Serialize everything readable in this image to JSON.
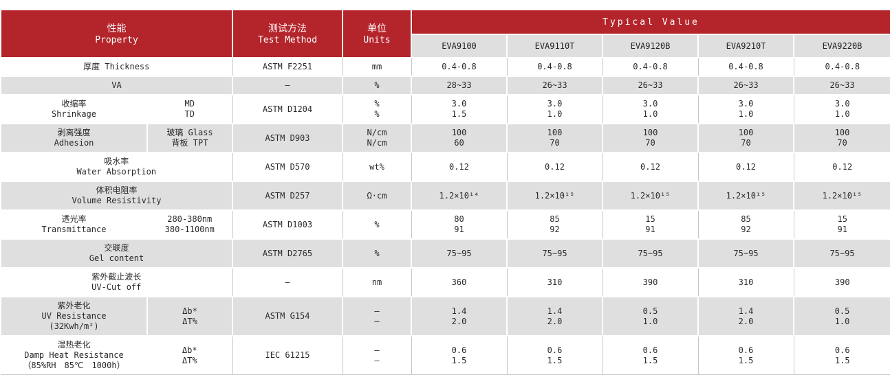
{
  "header": {
    "property": {
      "zh": "性能",
      "en": "Property"
    },
    "test_method": {
      "zh": "测试方法",
      "en": "Test Method"
    },
    "units": {
      "zh": "单位",
      "en": "Units"
    },
    "typical_value": "Typical Value",
    "models": [
      "EVA9100",
      "EVA9110T",
      "EVA9120B",
      "EVA9210T",
      "EVA9220B"
    ]
  },
  "colors": {
    "header_red": "#b4242b",
    "row_gray": "#dfdfdf",
    "row_white": "#ffffff",
    "grid_line": "#c6c6c6"
  },
  "rows": [
    {
      "name": [
        "厚度 Thickness"
      ],
      "sub": null,
      "method": "ASTM F2251",
      "units": [
        "mm"
      ],
      "values": [
        [
          "0.4-0.8"
        ],
        [
          "0.4-0.8"
        ],
        [
          "0.4-0.8"
        ],
        [
          "0.4-0.8"
        ],
        [
          "0.4-0.8"
        ]
      ]
    },
    {
      "name": [
        "VA"
      ],
      "sub": null,
      "method": "–",
      "units": [
        "%"
      ],
      "values": [
        [
          "28~33"
        ],
        [
          "26~33"
        ],
        [
          "26~33"
        ],
        [
          "26~33"
        ],
        [
          "26~33"
        ]
      ]
    },
    {
      "name": [
        "收缩率",
        "Shrinkage"
      ],
      "sub": [
        "MD",
        "TD"
      ],
      "method": "ASTM D1204",
      "units": [
        "%",
        "%"
      ],
      "values": [
        [
          "3.0",
          "1.5"
        ],
        [
          "3.0",
          "1.0"
        ],
        [
          "3.0",
          "1.0"
        ],
        [
          "3.0",
          "1.0"
        ],
        [
          "3.0",
          "1.0"
        ]
      ]
    },
    {
      "name": [
        "剥离强度",
        "Adhesion"
      ],
      "sub": [
        "玻璃 Glass",
        "背板 TPT"
      ],
      "method": "ASTM D903",
      "units": [
        "N/cm",
        "N/cm"
      ],
      "values": [
        [
          "100",
          "60"
        ],
        [
          "100",
          "70"
        ],
        [
          "100",
          "70"
        ],
        [
          "100",
          "70"
        ],
        [
          "100",
          "70"
        ]
      ]
    },
    {
      "name": [
        "吸水率",
        "Water Absorption"
      ],
      "sub": null,
      "method": "ASTM D570",
      "units": [
        "wt%"
      ],
      "values": [
        [
          "0.12"
        ],
        [
          "0.12"
        ],
        [
          "0.12"
        ],
        [
          "0.12"
        ],
        [
          "0.12"
        ]
      ]
    },
    {
      "name": [
        "体积电阻率",
        "Volume Resistivity"
      ],
      "sub": null,
      "method": "ASTM D257",
      "units": [
        "Ω·cm"
      ],
      "values": [
        [
          "1.2×10¹⁴"
        ],
        [
          "1.2×10¹⁵"
        ],
        [
          "1.2×10¹⁵"
        ],
        [
          "1.2×10¹⁵"
        ],
        [
          "1.2×10¹⁵"
        ]
      ]
    },
    {
      "name": [
        "透光率",
        "Transmittance"
      ],
      "sub": [
        "280-380nm",
        "380-1100nm"
      ],
      "method": "ASTM D1003",
      "units": [
        "%"
      ],
      "values": [
        [
          "80",
          "91"
        ],
        [
          "85",
          "92"
        ],
        [
          "15",
          "91"
        ],
        [
          "85",
          "92"
        ],
        [
          "15",
          "91"
        ]
      ]
    },
    {
      "name": [
        "交联度",
        "Gel content"
      ],
      "sub": null,
      "method": "ASTM D2765",
      "units": [
        "%"
      ],
      "values": [
        [
          "75~95"
        ],
        [
          "75~95"
        ],
        [
          "75~95"
        ],
        [
          "75~95"
        ],
        [
          "75~95"
        ]
      ]
    },
    {
      "name": [
        "紫外截止波长",
        "UV-Cut off"
      ],
      "sub": null,
      "method": "–",
      "units": [
        "nm"
      ],
      "values": [
        [
          "360"
        ],
        [
          "310"
        ],
        [
          "390"
        ],
        [
          "310"
        ],
        [
          "390"
        ]
      ]
    },
    {
      "name": [
        "紫外老化",
        "UV Resistance",
        "(32Kwh/m²)"
      ],
      "sub": [
        "Δb*",
        "ΔT%"
      ],
      "method": "ASTM G154",
      "units": [
        "–",
        "–"
      ],
      "values": [
        [
          "1.4",
          "2.0"
        ],
        [
          "1.4",
          "2.0"
        ],
        [
          "0.5",
          "1.0"
        ],
        [
          "1.4",
          "2.0"
        ],
        [
          "0.5",
          "1.0"
        ]
      ]
    },
    {
      "name": [
        "湿热老化",
        "Damp Heat Resistance",
        "（85%RH　85℃　1000h）"
      ],
      "sub": [
        "Δb*",
        "ΔT%"
      ],
      "method": "IEC 61215",
      "units": [
        "–",
        "–"
      ],
      "values": [
        [
          "0.6",
          "1.5"
        ],
        [
          "0.6",
          "1.5"
        ],
        [
          "0.6",
          "1.5"
        ],
        [
          "0.6",
          "1.5"
        ],
        [
          "0.6",
          "1.5"
        ]
      ]
    }
  ]
}
